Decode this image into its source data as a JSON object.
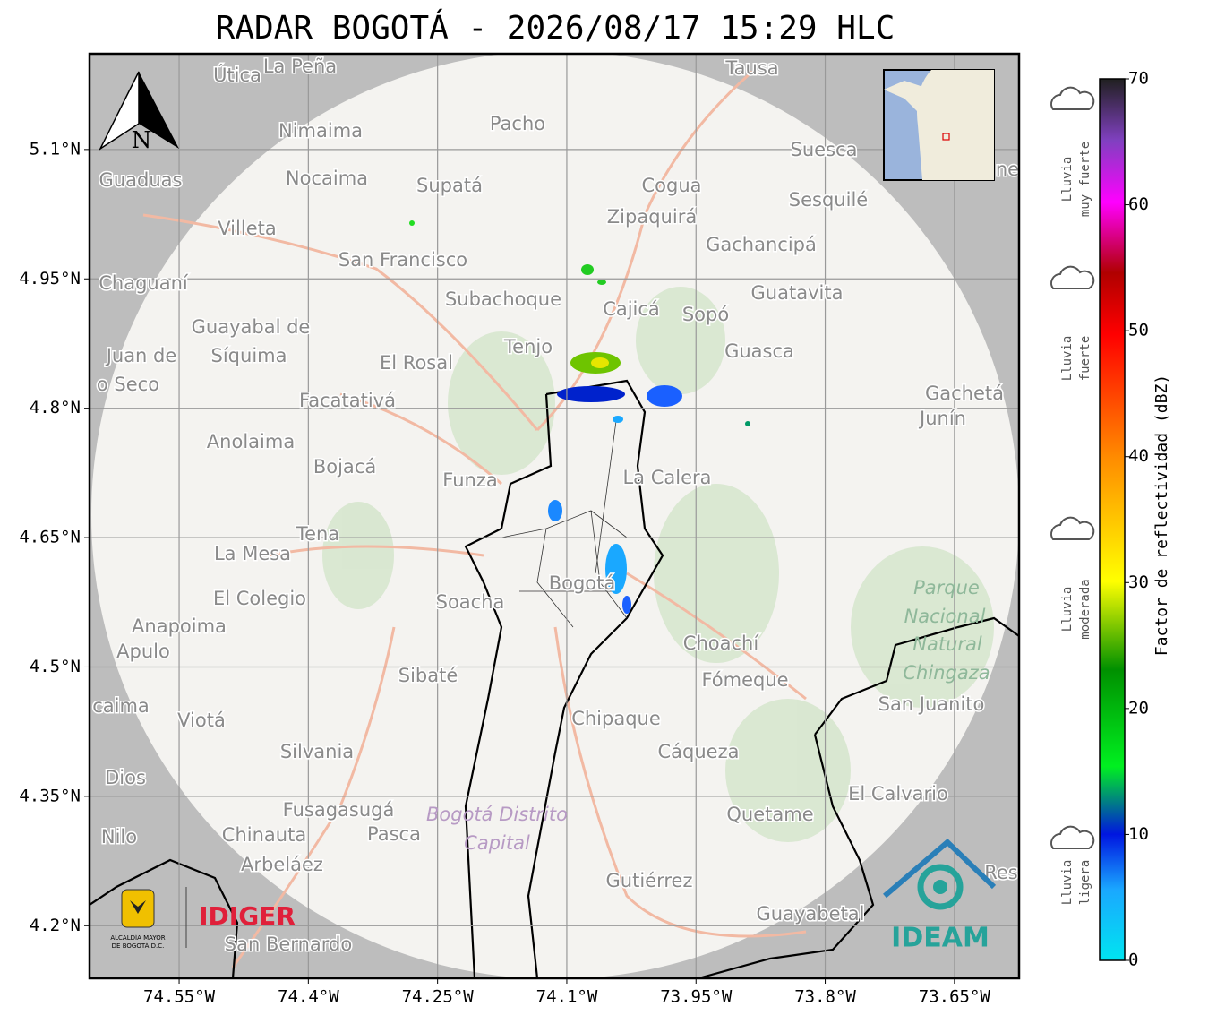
{
  "header": {
    "title": "RADAR BOGOTÁ - 2026/08/17 15:29 HLC"
  },
  "map": {
    "lat_range": [
      4.139,
      5.211
    ],
    "lon_range": [
      -74.654,
      -73.575
    ],
    "lat_ticks": [
      {
        "value": 5.1,
        "label": "5.1°N"
      },
      {
        "value": 4.95,
        "label": "4.95°N"
      },
      {
        "value": 4.8,
        "label": "4.8°N"
      },
      {
        "value": 4.65,
        "label": "4.65°N"
      },
      {
        "value": 4.5,
        "label": "4.5°N"
      },
      {
        "value": 4.35,
        "label": "4.35°N"
      },
      {
        "value": 4.2,
        "label": "4.2°N"
      }
    ],
    "lon_ticks": [
      {
        "value": -74.55,
        "label": "74.55°W"
      },
      {
        "value": -74.4,
        "label": "74.4°W"
      },
      {
        "value": -74.25,
        "label": "74.25°W"
      },
      {
        "value": -74.1,
        "label": "74.1°W"
      },
      {
        "value": -73.95,
        "label": "73.95°W"
      },
      {
        "value": -73.8,
        "label": "73.8°W"
      },
      {
        "value": -73.65,
        "label": "73.65°W"
      }
    ],
    "north": "N",
    "places": [
      "Útica",
      "La Peña",
      "Tausa",
      "Pacho",
      "Nimaima",
      "Suesca",
      "Guaduas",
      "Nocaima",
      "Supatá",
      "Cogua",
      "Sesquilé",
      "Zipaquirá",
      "Villeta",
      "Gachancipá",
      "San Francisco",
      "Chaguaní",
      "Guatavita",
      "Subachoque",
      "Cajicá",
      "Sopó",
      "Guayabal de",
      "Síquima",
      "Juan de",
      "Tenjo",
      "Guasca",
      "El Rosal",
      "o Seco",
      "Facatativá",
      "Gachetá",
      "Junín",
      "Anolaima",
      "Bojacá",
      "Funza",
      "La Calera",
      "Tena",
      "La Mesa",
      "El Colegio",
      "Soacha",
      "Bogotá",
      "Anapoima",
      "Apulo",
      "Choachí",
      "Sibaté",
      "Fómeque",
      "San Juanito",
      "caima",
      "Viotá",
      "Chipaque",
      "Silvania",
      "Cáqueza",
      "Dios",
      "El Calvario",
      "Fusagasugá",
      "Quetame",
      "Nilo",
      "Chinauta",
      "Pasca",
      "Arbeláez",
      "Gutiérrez",
      "Guayabetal",
      "San Bernardo",
      "Res",
      "ne"
    ],
    "park": [
      "Parque",
      "Nacional",
      "Natural",
      "Chingaza"
    ],
    "district": [
      "Bogotá Distrito",
      "Capital"
    ],
    "logos": {
      "alcaldia": [
        "ALCALDÍA MAYOR",
        "DE BOGOTÁ D.C."
      ],
      "idiger": "IDIGER",
      "ideam": "IDEAM"
    }
  },
  "colorbar": {
    "label": "Factor de reflectividad (dBZ)",
    "range": [
      0,
      70
    ],
    "ticks": [
      0,
      10,
      20,
      30,
      40,
      50,
      60,
      70
    ]
  },
  "rain_levels": [
    [
      "Lluvia",
      "muy fuerte"
    ],
    [
      "Lluvia",
      "fuerte"
    ],
    [
      "Lluvia",
      "moderada"
    ],
    [
      "Lluvia",
      "ligera"
    ]
  ]
}
